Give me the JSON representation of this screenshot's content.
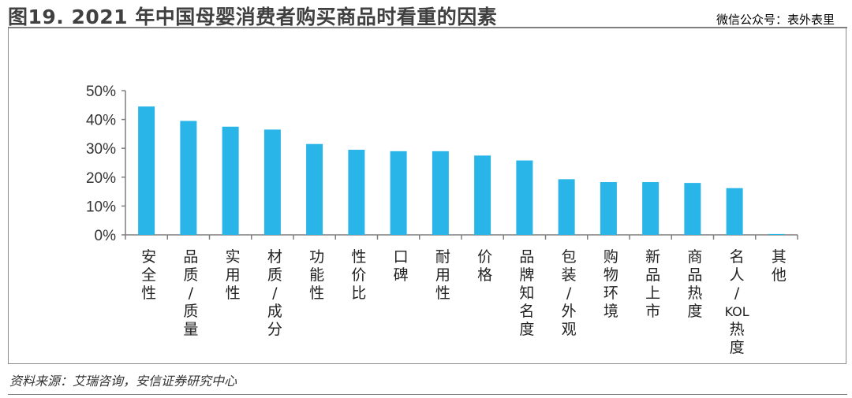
{
  "header": {
    "title": "图19. 2021 年中国母婴消费者购买商品时看重的因素",
    "watermark": "微信公众号：表外表里"
  },
  "footer": {
    "source": "资料来源：艾瑞咨询，安信证券研究中心"
  },
  "chart_data": {
    "type": "bar",
    "categories": [
      "安全性",
      "品质/质量",
      "实用性",
      "材质/成分",
      "功能性",
      "性价比",
      "口碑",
      "耐用性",
      "价格",
      "品牌知名度",
      "包装/外观",
      "购物环境",
      "新品上市",
      "商品热度",
      "名人/KOL热度",
      "其他"
    ],
    "series": [
      {
        "values": [
          44.5,
          39.5,
          37.5,
          36.5,
          31.5,
          29.5,
          29.0,
          29.0,
          27.5,
          25.8,
          19.3,
          18.3,
          18.3,
          18.0,
          16.2,
          0.3
        ]
      }
    ],
    "yticks": [
      "0%",
      "10%",
      "20%",
      "30%",
      "40%",
      "50%"
    ],
    "ylim": [
      0,
      50
    ],
    "bar_color": "#29b5e8",
    "xlabel": "",
    "ylabel": "",
    "grid": false,
    "legend": "none"
  }
}
